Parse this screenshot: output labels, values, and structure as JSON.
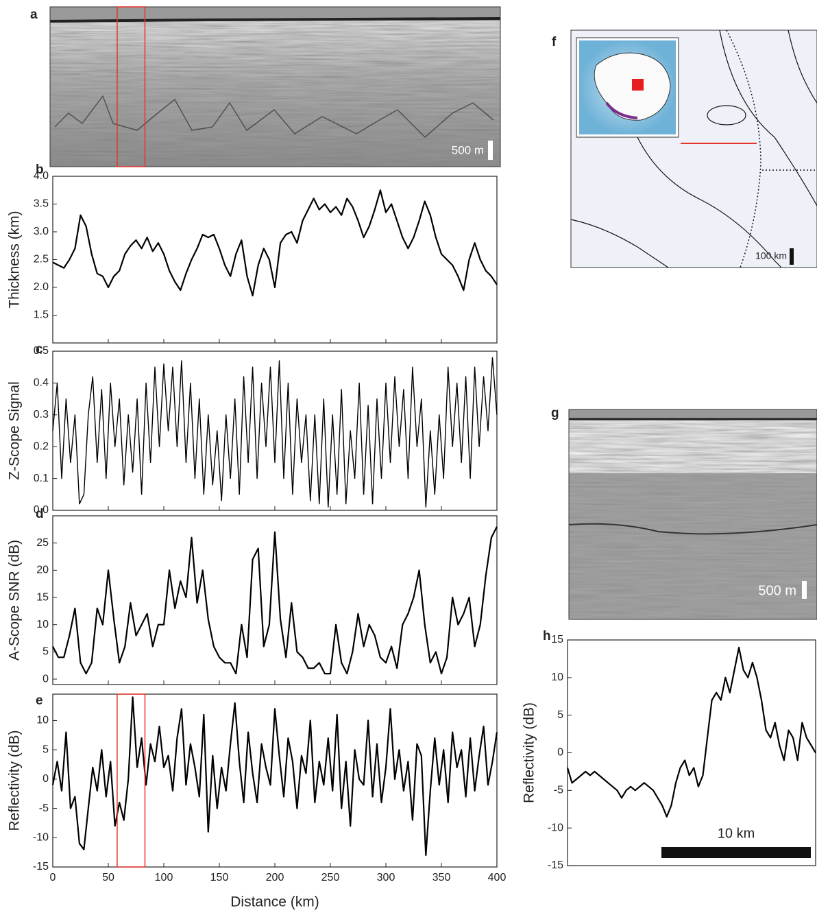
{
  "images": [
    {
      "panel": "a",
      "scale_label": "500 m"
    },
    {
      "panel": "g",
      "scale_label": "500 m"
    }
  ],
  "map": {
    "panel": "f",
    "scale_label": "100 km"
  },
  "chart_data": [
    {
      "type": "line",
      "panel": "b",
      "y_label": "Thickness (km)",
      "color": "#000000",
      "ylim": [
        1.0,
        4.0
      ],
      "yticks": [
        {
          "value": 1.5,
          "label": "1.5"
        },
        {
          "value": 2.0,
          "label": "2.0"
        },
        {
          "value": 2.5,
          "label": "2.5"
        },
        {
          "value": 3.0,
          "label": "3.0"
        },
        {
          "value": 3.5,
          "label": "3.5"
        },
        {
          "value": 4.0,
          "label": "4.0"
        }
      ],
      "xlim": [
        0,
        400
      ],
      "xticks": [
        0,
        50,
        100,
        150,
        200,
        250,
        300,
        350,
        400
      ],
      "x_tick_labels": false,
      "x": [
        0,
        5,
        10,
        15,
        20,
        25,
        30,
        35,
        40,
        45,
        50,
        55,
        60,
        65,
        70,
        75,
        80,
        85,
        90,
        95,
        100,
        105,
        110,
        115,
        120,
        125,
        130,
        135,
        140,
        145,
        150,
        155,
        160,
        165,
        170,
        175,
        180,
        185,
        190,
        195,
        200,
        205,
        210,
        215,
        220,
        225,
        230,
        235,
        240,
        245,
        250,
        255,
        260,
        265,
        270,
        275,
        280,
        285,
        290,
        295,
        300,
        305,
        310,
        315,
        320,
        325,
        330,
        335,
        340,
        345,
        350,
        355,
        360,
        365,
        370,
        375,
        380,
        385,
        390,
        395,
        400
      ],
      "values": [
        2.45,
        2.4,
        2.35,
        2.5,
        2.7,
        3.3,
        3.1,
        2.6,
        2.25,
        2.2,
        2.0,
        2.2,
        2.3,
        2.6,
        2.75,
        2.85,
        2.7,
        2.9,
        2.65,
        2.8,
        2.6,
        2.3,
        2.1,
        1.95,
        2.25,
        2.5,
        2.7,
        2.95,
        2.9,
        2.95,
        2.7,
        2.4,
        2.2,
        2.6,
        2.85,
        2.2,
        1.85,
        2.4,
        2.7,
        2.5,
        2.0,
        2.8,
        2.95,
        3.0,
        2.8,
        3.2,
        3.4,
        3.6,
        3.4,
        3.5,
        3.35,
        3.45,
        3.3,
        3.6,
        3.45,
        3.2,
        2.9,
        3.1,
        3.4,
        3.75,
        3.35,
        3.5,
        3.2,
        2.9,
        2.7,
        2.9,
        3.2,
        3.55,
        3.3,
        2.9,
        2.6,
        2.5,
        2.4,
        2.2,
        1.95,
        2.5,
        2.8,
        2.5,
        2.3,
        2.2,
        2.05
      ]
    },
    {
      "type": "line",
      "panel": "c",
      "y_label": "Z-Scope Signal",
      "color": "#000000",
      "ylim": [
        0,
        0.5
      ],
      "yticks": [
        {
          "value": 0,
          "label": "0.0"
        },
        0.1,
        0.2,
        0.3,
        0.4,
        0.5
      ],
      "xlim": [
        0,
        400
      ],
      "xticks": [
        0,
        50,
        100,
        150,
        200,
        250,
        300,
        350,
        400
      ],
      "x_tick_labels": false,
      "x": [
        0,
        4,
        8,
        12,
        16,
        20,
        24,
        28,
        32,
        36,
        40,
        44,
        48,
        52,
        56,
        60,
        64,
        68,
        72,
        76,
        80,
        84,
        88,
        92,
        96,
        100,
        104,
        108,
        112,
        116,
        120,
        124,
        128,
        132,
        136,
        140,
        144,
        148,
        152,
        156,
        160,
        164,
        168,
        172,
        176,
        180,
        184,
        188,
        192,
        196,
        200,
        204,
        208,
        212,
        216,
        220,
        224,
        228,
        232,
        236,
        240,
        244,
        248,
        252,
        256,
        260,
        264,
        268,
        272,
        276,
        280,
        284,
        288,
        292,
        296,
        300,
        304,
        308,
        312,
        316,
        320,
        324,
        328,
        332,
        336,
        340,
        344,
        348,
        352,
        356,
        360,
        364,
        368,
        372,
        376,
        380,
        384,
        388,
        392,
        396,
        400
      ],
      "values": [
        0.25,
        0.4,
        0.1,
        0.35,
        0.15,
        0.3,
        0.02,
        0.05,
        0.3,
        0.42,
        0.15,
        0.38,
        0.1,
        0.4,
        0.2,
        0.35,
        0.08,
        0.3,
        0.12,
        0.35,
        0.05,
        0.4,
        0.15,
        0.45,
        0.2,
        0.46,
        0.25,
        0.45,
        0.2,
        0.47,
        0.15,
        0.4,
        0.1,
        0.35,
        0.05,
        0.3,
        0.08,
        0.25,
        0.03,
        0.3,
        0.1,
        0.35,
        0.05,
        0.42,
        0.15,
        0.45,
        0.1,
        0.4,
        0.2,
        0.45,
        0.15,
        0.47,
        0.1,
        0.4,
        0.05,
        0.35,
        0.15,
        0.3,
        0.03,
        0.3,
        0.02,
        0.35,
        0.01,
        0.3,
        0.05,
        0.38,
        0.02,
        0.25,
        0.1,
        0.4,
        0.05,
        0.33,
        0.02,
        0.35,
        0.1,
        0.4,
        0.15,
        0.42,
        0.2,
        0.38,
        0.1,
        0.45,
        0.2,
        0.35,
        0.01,
        0.25,
        0.05,
        0.3,
        0.1,
        0.45,
        0.2,
        0.4,
        0.15,
        0.42,
        0.1,
        0.45,
        0.2,
        0.42,
        0.25,
        0.48,
        0.3
      ]
    },
    {
      "type": "line",
      "panel": "d",
      "y_label": "A-Scope SNR (dB)",
      "color": "#000000",
      "ylim": [
        -1,
        30
      ],
      "yticks": [
        0,
        5,
        10,
        15,
        20,
        25
      ],
      "xlim": [
        0,
        400
      ],
      "xticks": [
        0,
        50,
        100,
        150,
        200,
        250,
        300,
        350,
        400
      ],
      "x_tick_labels": false,
      "x": [
        0,
        5,
        10,
        15,
        20,
        25,
        30,
        35,
        40,
        45,
        50,
        55,
        60,
        65,
        70,
        75,
        80,
        85,
        90,
        95,
        100,
        105,
        110,
        115,
        120,
        125,
        130,
        135,
        140,
        145,
        150,
        155,
        160,
        165,
        170,
        175,
        180,
        185,
        190,
        195,
        200,
        205,
        210,
        215,
        220,
        225,
        230,
        235,
        240,
        245,
        250,
        255,
        260,
        265,
        270,
        275,
        280,
        285,
        290,
        295,
        300,
        305,
        310,
        315,
        320,
        325,
        330,
        335,
        340,
        345,
        350,
        355,
        360,
        365,
        370,
        375,
        380,
        385,
        390,
        395,
        400
      ],
      "values": [
        6,
        4,
        4,
        8,
        13,
        3,
        1,
        3,
        13,
        10,
        20,
        11,
        3,
        6,
        14,
        8,
        10,
        12,
        6,
        10,
        10,
        20,
        13,
        18,
        15,
        26,
        14,
        20,
        11,
        6,
        4,
        3,
        3,
        1,
        10,
        4,
        22,
        24,
        6,
        10,
        27,
        11,
        4,
        14,
        5,
        4,
        2,
        2,
        3,
        1,
        1,
        10,
        3,
        1,
        5,
        12,
        6,
        10,
        8,
        4,
        3,
        6,
        2,
        10,
        12,
        15,
        20,
        10,
        3,
        5,
        1,
        4,
        15,
        10,
        12,
        15,
        6,
        10,
        19,
        26,
        28
      ]
    },
    {
      "type": "line",
      "panel": "e",
      "y_label": "Reflectivity (dB)",
      "x_label": "Distance (km)",
      "color": "#000000",
      "ylim": [
        -15,
        14.5
      ],
      "yticks": [
        -15,
        -10,
        -5,
        0,
        5,
        10
      ],
      "xlim": [
        0,
        400
      ],
      "xticks": [
        0,
        50,
        100,
        150,
        200,
        250,
        300,
        350,
        400
      ],
      "x_tick_labels": true,
      "highlight_x": [
        58,
        83
      ],
      "highlight_color": "#e8332a",
      "x": [
        0,
        4,
        8,
        12,
        16,
        20,
        24,
        28,
        32,
        36,
        40,
        44,
        48,
        52,
        56,
        60,
        64,
        68,
        72,
        76,
        80,
        84,
        88,
        92,
        96,
        100,
        104,
        108,
        112,
        116,
        120,
        124,
        128,
        132,
        136,
        140,
        144,
        148,
        152,
        156,
        160,
        164,
        168,
        172,
        176,
        180,
        184,
        188,
        192,
        196,
        200,
        204,
        208,
        212,
        216,
        220,
        224,
        228,
        232,
        236,
        240,
        244,
        248,
        252,
        256,
        260,
        264,
        268,
        272,
        276,
        280,
        284,
        288,
        292,
        296,
        300,
        304,
        308,
        312,
        316,
        320,
        324,
        328,
        332,
        336,
        340,
        344,
        348,
        352,
        356,
        360,
        364,
        368,
        372,
        376,
        380,
        384,
        388,
        392,
        396,
        400
      ],
      "values": [
        -1,
        3,
        -2,
        8,
        -5,
        -3,
        -11,
        -12,
        -5,
        2,
        -2,
        5,
        -3,
        3,
        -8,
        -4,
        -7,
        0,
        14,
        2,
        7,
        -1,
        6,
        3,
        9,
        2,
        4,
        -2,
        7,
        12,
        -1,
        6,
        2,
        -3,
        11,
        -9,
        4,
        -5,
        2,
        -2,
        6,
        13,
        3,
        -4,
        8,
        1,
        -4,
        6,
        2,
        -1,
        12,
        4,
        -3,
        7,
        3,
        -5,
        4,
        1,
        10,
        -4,
        3,
        -1,
        7,
        -2,
        11,
        -5,
        3,
        -8,
        5,
        0,
        -1,
        10,
        -3,
        6,
        -4,
        2,
        12,
        0,
        5,
        -2,
        3,
        -7,
        6,
        4,
        -13,
        -2,
        7,
        -1,
        5,
        -4,
        8,
        2,
        5,
        -3,
        7,
        -2,
        4,
        9,
        -1,
        3,
        8
      ]
    },
    {
      "type": "line",
      "panel": "h",
      "y_label": "Reflectivity (dB)",
      "scale_label": "10 km",
      "color": "#000000",
      "ylim": [
        -15,
        15
      ],
      "yticks": [
        -15,
        -10,
        -5,
        0,
        5,
        10,
        15
      ],
      "values": [
        -2,
        -4,
        -3.5,
        -3,
        -2.5,
        -3,
        -2.5,
        -3,
        -3.5,
        -4,
        -4.5,
        -5,
        -6,
        -5,
        -4.5,
        -5,
        -4.5,
        -4,
        -4.5,
        -5,
        -6,
        -7,
        -8.5,
        -7,
        -4,
        -2,
        -1,
        -3,
        -2,
        -4.5,
        -3,
        2,
        7,
        8,
        7,
        10,
        8,
        11,
        14,
        11,
        10,
        12,
        10,
        7,
        3,
        2,
        4,
        1,
        -1,
        3,
        2,
        -1,
        4,
        2,
        1,
        0
      ]
    }
  ]
}
